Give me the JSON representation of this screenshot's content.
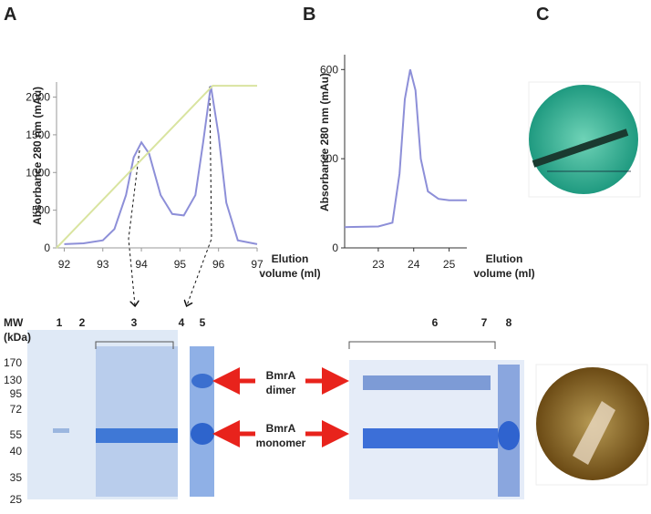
{
  "panel_labels": [
    "A",
    "B",
    "C"
  ],
  "chart_data": [
    {
      "type": "line",
      "ylabel": "Absorbance 280 nm (mAu)",
      "xlabel": [
        "Elution",
        "volume (ml)"
      ],
      "xlim": [
        91.8,
        97
      ],
      "ylim": [
        0,
        2200
      ],
      "xticks": [
        92,
        93,
        94,
        95,
        96,
        97
      ],
      "yticks": [
        0,
        500,
        1000,
        1500,
        2000
      ],
      "series": [
        {
          "color": "#8d8fd8",
          "x": [
            92,
            92.5,
            93,
            93.3,
            93.6,
            93.8,
            94,
            94.2,
            94.5,
            94.8,
            95.1,
            95.4,
            95.6,
            95.8,
            96,
            96.2,
            96.5,
            97
          ],
          "values": [
            50,
            60,
            100,
            250,
            700,
            1200,
            1400,
            1250,
            700,
            450,
            430,
            700,
            1400,
            2150,
            1500,
            600,
            100,
            50
          ]
        },
        {
          "color": "#d9e4a0",
          "x": [
            91.8,
            95.85,
            97
          ],
          "values": [
            0,
            2150,
            2150
          ]
        }
      ]
    },
    {
      "type": "line",
      "ylabel": "Absorbance 280 nm (mAu)",
      "xlabel": [
        "Elution",
        "volume (ml)"
      ],
      "xlim": [
        22.05,
        25.5
      ],
      "ylim": [
        0,
        650
      ],
      "xticks": [
        23,
        24,
        25
      ],
      "yticks": [
        0,
        300,
        600
      ],
      "series": [
        {
          "color": "#8d8fd8",
          "x": [
            22.05,
            23,
            23.4,
            23.6,
            23.75,
            23.9,
            24.05,
            24.2,
            24.4,
            24.7,
            25,
            25.5
          ],
          "values": [
            70,
            72,
            85,
            250,
            500,
            600,
            530,
            300,
            190,
            165,
            160,
            160
          ]
        }
      ]
    }
  ],
  "gel": {
    "mw_title": [
      "MW",
      "(kDa)"
    ],
    "mw": [
      "170",
      "130",
      "95",
      "72",
      "55",
      "40",
      "35",
      "25"
    ],
    "lanes": [
      "1",
      "2",
      "3",
      "4",
      "5",
      "6",
      "7",
      "8"
    ],
    "dimer": [
      "BmrA",
      "dimer"
    ],
    "monomer": [
      "BmrA",
      "monomer"
    ]
  }
}
